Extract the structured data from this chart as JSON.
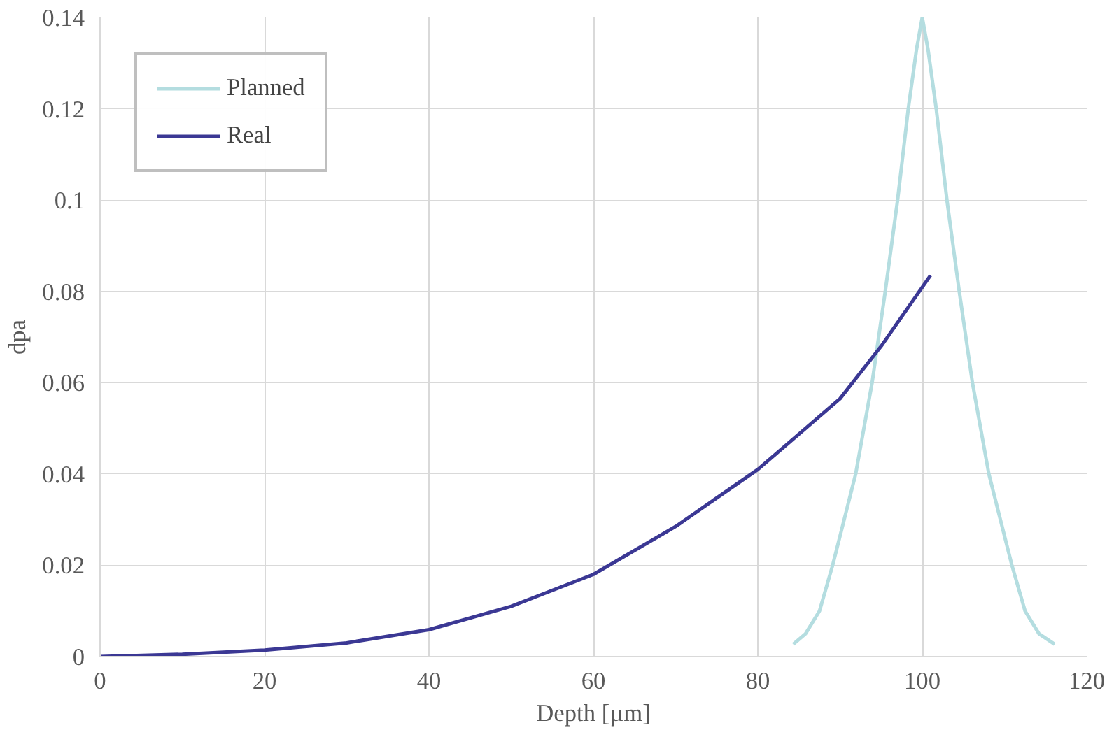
{
  "chart_data": {
    "type": "line",
    "xlabel": "Depth [µm]",
    "ylabel": "dpa",
    "xlim": [
      0,
      120
    ],
    "ylim": [
      0,
      0.14
    ],
    "xticks": [
      0,
      20,
      40,
      60,
      80,
      100,
      120
    ],
    "yticks": [
      0,
      0.02,
      0.04,
      0.06,
      0.08,
      0.1,
      0.12,
      0.14
    ],
    "grid": true,
    "legend": "top left",
    "marker": "none",
    "line_style": "solid",
    "series": [
      {
        "name": "Planned",
        "color": "#b4dde0",
        "x": [
          84.3,
          85.8,
          87.5,
          89.1,
          91.9,
          93.9,
          95.5,
          97.0,
          98.3,
          99.3,
          100,
          100.7,
          101.7,
          103.0,
          104.5,
          106.1,
          108.1,
          110.9,
          112.5,
          114.2,
          116.1
        ],
        "values": [
          0.0027,
          0.005,
          0.01,
          0.02,
          0.04,
          0.06,
          0.08,
          0.1,
          0.12,
          0.133,
          0.14,
          0.133,
          0.12,
          0.1,
          0.08,
          0.06,
          0.04,
          0.02,
          0.01,
          0.005,
          0.0027
        ]
      },
      {
        "name": "Real",
        "color": "#3b3894",
        "x": [
          0,
          10,
          20,
          30,
          40,
          50,
          60,
          70,
          80,
          90,
          95,
          101
        ],
        "values": [
          0,
          0.0005,
          0.0014,
          0.003,
          0.0059,
          0.011,
          0.018,
          0.0285,
          0.041,
          0.0565,
          0.068,
          0.0835
        ]
      }
    ]
  }
}
